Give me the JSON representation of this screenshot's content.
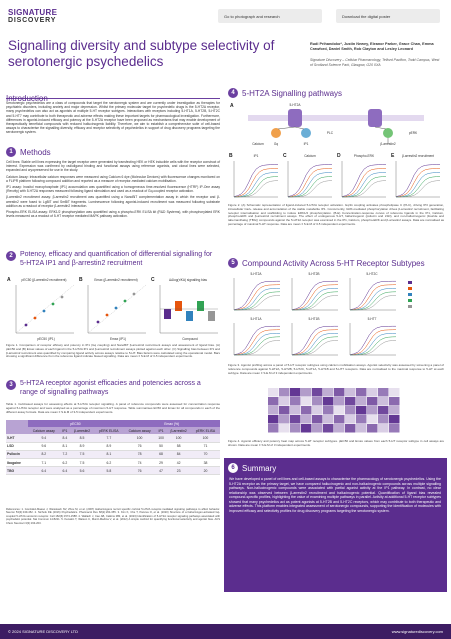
{
  "header": {
    "logo": "SIGNATURE",
    "logo_sub": "DISCOVERY",
    "buttons": [
      "Go to photograph and research",
      "Download the digital poster"
    ],
    "title": "Signalling diversity and subtype selectivity of serotonergic psychedelics",
    "authors": "Rudi Prihandoko*, Justin Newey, Eleanor Parker, Grace Chan, Emma Crawford, Daniel Smith, Rob Clayton and Lesley Leonard",
    "affiliation": "Signature Discovery – Cellular Pharmacology, Telford Pavilion, Todd Campus, West of Scotland Science Park, Glasgow, G20 0XA"
  },
  "introduction": {
    "title": "Introduction",
    "text": "Serotonergic psychedelics are a class of compounds that target the serotonergic system and are currently under investigation as therapies for psychiatric disorders, including anxiety and major depression. Whilst the primary molecular target for psychedelic drugs is the 5-HT2A receptor, many psychedelics can also act as agonists at multiple 5-HT receptor subtypes. Interactions with receptors including 5-HT1A, 5-HT2B, 5-HT2C and 5-HT7 may contribute to both therapeutic and adverse effects making these important targets for pharmacological investigation. Furthermore, differences in agonist-induced efficacy and potency at the 5-HT2A receptor have been proposed as mechanisms that may enable development of therapeutically beneficial compounds with reduced hallucinogenic liability. Therefore, we aim to establish a comprehensive suite of cell-based assays to characterise the signalling diversity, efficacy and receptor selectivity of psychedelics in support of drug discovery programs targeting the serotonergic system."
  },
  "methods": {
    "number": "1",
    "title": "Methods",
    "paragraphs": [
      "Cell lines: Stable cell lines expressing the target receptor were generated by transfecting HEK or HEK inducible cells with the receptor construct of interest. Expression was confirmed by radioligand binding and functional assays using reference agonists, and clonal lines were selected, expanded and cryopreserved for use in the study.",
      "Calcium Assay: Intracellular calcium responses were measured using Calcium 6 dye (Molecular Devices) with fluorescence changes monitored on a FLIPR platform following compound addition and reported as a measure of receptor-mediated calcium mobilisation.",
      "IP1 assay: Inositol monophosphate (IP1) accumulation was quantified using a homogeneous time-resolved fluorescence (HTRF) IP-One assay (Revvity) with 5-HT2A responses measured following ligand stimulation and used as a readout of Gq-coupled receptor activation.",
      "β-arrestin2 recruitment assay: β-arrestin2 recruitment was quantified using a NanoBiT complementation assay in which the receptor and β-arrestin2 were fused to LgBiT and SmBiT fragments. Luminescence following agonist-induced recruitment was measured following substrate addition as a readout of receptor β-arrestin2 interaction.",
      "Phospho-ERK ELISA assay: ERK1/2 phosphorylation was quantified using a phospho-ERK ELISA kit (R&D Systems), with phosphorylated ERK levels measured as a readout of 5-HT receptor mediated MAPK pathway activation."
    ]
  },
  "section2": {
    "number": "2",
    "title": "Potency, efficacy and quantification of differential signalling for 5-HT2A IP1 and β-arrestin2 recruitment",
    "panels": [
      {
        "label": "A",
        "title": "pEC50 (β-arrestin2 recruitment)",
        "x_label": "pEC50 (IP1)"
      },
      {
        "label": "B",
        "title": "Emax (β-arrestin2 recruitment)",
        "x_label": "Emax (IP1)"
      },
      {
        "label": "C",
        "title": "ΔΔlog(τ/KA) signalling bias",
        "x_label": "Compound"
      }
    ],
    "caption": "Figure 1. Comparison of receptor efficacy and potency in IP1 (Gq coupling) and NanoBiT β-arrestin2 recruitment assays and assessment of ligand bias. (A) pEC50 and (B) Emax values of each ligand in the 5-HT2A IP1 and β-arrestin2 recruitment assays plotted against each other. (C) Signalling bias between IP1 and β-arrestin2 recruitment was quantified by comparing ligand activity across assays relative to 5-HT. Bias factors were calculated using the operational model. Bars showing a significant difference from the reference ligand indicate biased signalling. Data are mean ± S.E.M of 3-5 independent experiments."
  },
  "section3": {
    "number": "3",
    "title": "5-HT2A receptor agonist efficacies and potencies across a range of signalling pathways",
    "caption": "Table 1. Cell-based assays for assessing effects at 5-HT2A receptor signalling. A panel of reference compounds were assessed for concentration response against 5-HT2A receptor and were analysed as a percentage of maximum 5-HT response. Table summarises EC50 and Emax for all compounds in each of the different assay formats. Data are mean ± S.E.M of 3-5 independent experiments.",
    "group_headers": [
      "pEC50",
      "Emax (%)"
    ],
    "headers": [
      "Calcium assay",
      "IP1",
      "β-arrestin2",
      "pERK ELISA",
      "Calcium assay",
      "IP1",
      "β-arrestin2",
      "pERK ELISA"
    ],
    "rows": [
      [
        "5-HT",
        "9.4",
        "8.4",
        "8.5",
        "7.7",
        "100",
        "100",
        "100",
        "100"
      ],
      [
        "LSD",
        "9.6",
        "8.1",
        "8.9",
        "8.9",
        "76",
        "50",
        "58",
        "71"
      ],
      [
        "Psilocin",
        "8.2",
        "7.2",
        "7.5",
        "8.1",
        "78",
        "68",
        "84",
        "70"
      ],
      [
        "Ibogaine",
        "7.1",
        "6.2",
        "7.5",
        "6.2",
        "74",
        "29",
        "42",
        "38"
      ],
      [
        "TBG",
        "6.4",
        "6.4",
        "5.6",
        "5.8",
        "76",
        "47",
        "23",
        "20"
      ]
    ]
  },
  "references": "References: 1. González-Maeso J, Weisstaub NV, Zhou M, et al. (2007) Hallucinogens recruit specific cortical 5-HT2A receptor-mediated signaling pathways to affect behavior. Neuron 53(3):439-452. 2. Nichols DE (2016) Psychedelics. Pharmacol Rev 68(2):264-355. 3. Kim K, Che T, Panova O, et al. (2020) Structure of a hallucinogen-activated Gq-coupled 5-HT2A serotonin receptor. Cell 182(6):1574-1588. 4. Wallach J, Cao AB, Calkins MM, et al. (2023) Identification of 5-HT2A receptor signaling pathways associated with psychedelic potential. Nat Commun 14:8221. 5. Kenakin T, Watson C, Muniz-Medina V, et al. (2012) A simple method for quantifying functional selectivity and agonist bias. ACS Chem Neurosci 3(3):193-203.",
  "section4": {
    "number": "4",
    "title": "5-HT2A Signalling pathways",
    "diagram_labels": [
      "5-HT2A",
      "Gq",
      "PLC",
      "IP1",
      "Calcium",
      "β-arrestin2",
      "pERK"
    ],
    "panels": [
      {
        "label": "B",
        "title": "IP1"
      },
      {
        "label": "C",
        "title": "Calcium"
      },
      {
        "label": "D",
        "title": "Phospho-ERK"
      },
      {
        "label": "E",
        "title": "β-arrestin2 recruitment"
      }
    ],
    "caption": "Figure 2. (A) Schematic representation of ligand-induced 5-HT2A receptor activation. Gq/11 coupling activates phospholipase C (PLC), driving IP3 generation, intracellular Ca2+ release and accumulation of the stable metabolite IP1. Concurrently, GRK-mediated phosphorylation drives β-arrestin2 recruitment, facilitating receptor internalisation and scaffolding to induce ERK1/2 phosphorylation. (B-E) Concentration-response curves of reference ligands in the IP1, Calcium, phospho-ERK and β-arrestin2 recruitment assays. The effect of endogenous 5-HT, hallucinogenic (psilocin and LSD), and non-hallucinogenic (lisuride and tabernanthalog (TBG)) compounds against the 5-HT2A receptor was examined in the IP1, Calcium, phospho-ERK and β-arrestin2 assays. Data are normalised as percentage of maximal 5-HT response. Data are mean ± S.E.M of 3-5 independent experiments."
  },
  "section5": {
    "number": "5",
    "title": "Compound Activity Across 5-HT Receptor Subtypes",
    "panels": [
      "5-HT2A",
      "5-HT2B",
      "5-HT2C",
      "5-HT1A",
      "5-HT1B",
      "5-HT7"
    ],
    "caption_a": "Figure 3. Agonist profiling across a panel of 5-HT receptor subtypes using calcium mobilisation assays. Agonist selectivity was assessed by screening a panel of reference compounds against 5-HT2A, 5-HT2B, 5-HT2C, 5-HT1A, 5-HT1B and 5-HT7 receptors. Data are normalised to the maximal response to 5-HT at each subtype. Data are mean ± S.E.M of 3 independent experiments.",
    "caption_b": "Figure 4. Agonist efficacy and potency heat map across 5-HT receptor subtypes. pEC50 and Emax values from each 5-HT receptor subtype in cell assays are shown. Data are mean ± S.E.M of 3 independent experiments."
  },
  "summary": {
    "number": "6",
    "title": "Summary",
    "text": "We have developed a panel of cell lines and cell-based assays to characterise the pharmacology of serotonergic psychedelics. Using the 5-HT2A receptor as the primary target, we have compared hallucinogenic and non-hallucinogenic compounds across multiple signalling pathways. Non-hallucinogenic compounds were associated with partial agonist activity at the IP1 pathway. In contrast, no clear relationship was observed between β-arrestin2 recruitment and hallucinogenic potential. Quantification of ligand bias revealed compound-specific profiles, highlighting the value of examining multiple pathways in parallel. Activity at additional 5-HT receptor subtypes showed that many psychedelics act as potent agonists at 5-HT2B and 5-HT2C receptors, which may contribute to both therapeutic and adverse effects. This platform enables integrated assessment of serotonergic compounds, supporting the identification of molecules with improved efficacy and selectivity profiles for drug discovery programs targeting the serotonergic system."
  },
  "footer": {
    "copyright": "© 2024 SIGNATURE DISCOVERY LTD",
    "website": "www.signaturediscovery.com"
  }
}
